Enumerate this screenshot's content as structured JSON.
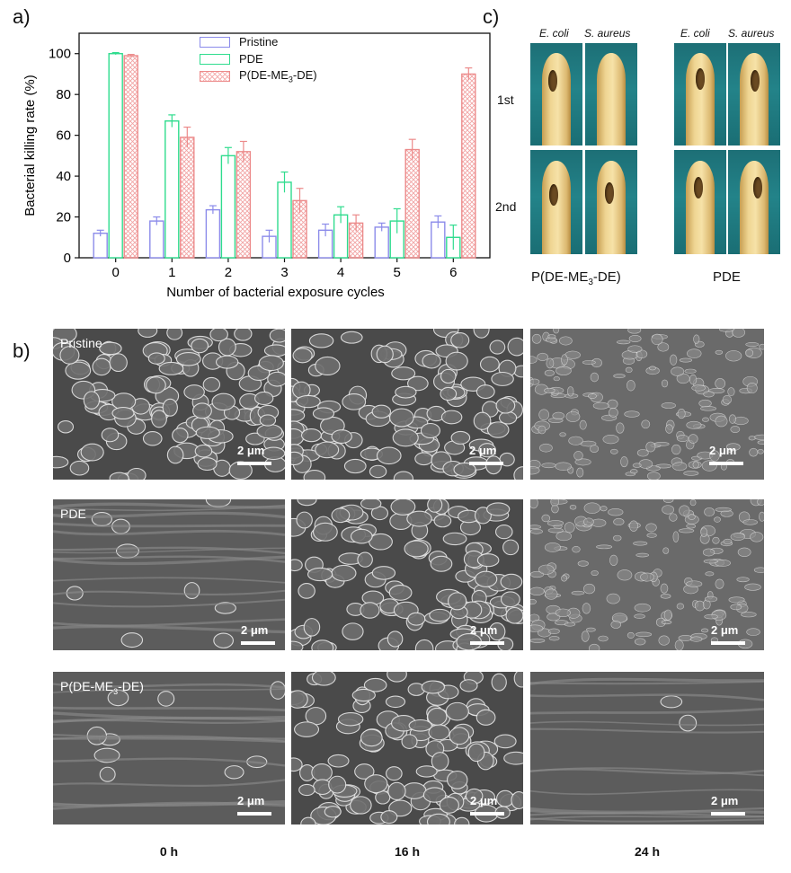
{
  "panel_labels": {
    "a": "a)",
    "b": "b)",
    "c": "c)"
  },
  "chart_data": {
    "type": "bar",
    "xlabel": "Number of bacterial exposure cycles",
    "ylabel": "Bacterial killing rate (%)",
    "categories": [
      "0",
      "1",
      "2",
      "3",
      "4",
      "5",
      "6"
    ],
    "ylim": [
      0,
      110
    ],
    "yticks": [
      0,
      20,
      40,
      60,
      80,
      100
    ],
    "legend_position": "top-center",
    "series": [
      {
        "name": "Pristine",
        "values": [
          12,
          18,
          23.5,
          10.5,
          13.5,
          15,
          17.5
        ],
        "errors": [
          1.5,
          2,
          2,
          3,
          3,
          2,
          3
        ],
        "color": "#8b8bea",
        "pattern": "none"
      },
      {
        "name": "PDE",
        "values": [
          100,
          67,
          50,
          37,
          21,
          18,
          10
        ],
        "errors": [
          0.5,
          3,
          4,
          5,
          4,
          6,
          6
        ],
        "color": "#2fdc8e",
        "pattern": "none"
      },
      {
        "name": "P(DE-ME3-DE)",
        "values": [
          99,
          59,
          52,
          28,
          17,
          53,
          90
        ],
        "errors": [
          0.6,
          5,
          5,
          6,
          4,
          5,
          3
        ],
        "color": "#ec8a8a",
        "pattern": "crosshatch"
      }
    ]
  },
  "legend": {
    "pristine": "Pristine",
    "pde": "PDE",
    "pdeme_prefix": "P(DE-ME",
    "pdeme_sub": "3",
    "pdeme_suffix": "-DE)"
  },
  "panel_c": {
    "col_ecoli": "E. coli",
    "col_saureus": "S. aureus",
    "row_1": "1st",
    "row_2": "2nd",
    "group_left_prefix": "P(DE-ME",
    "group_left_sub": "3",
    "group_left_suffix": "-DE)",
    "group_right": "PDE"
  },
  "panel_b": {
    "row_labels": {
      "pristine": "Pristine",
      "pde": "PDE",
      "pdeme_prefix": "P(DE-ME",
      "pdeme_sub": "3",
      "pdeme_suffix": "-DE)"
    },
    "scale_bar": "2 μm",
    "times": [
      "0 h",
      "16 h",
      "24 h"
    ]
  }
}
